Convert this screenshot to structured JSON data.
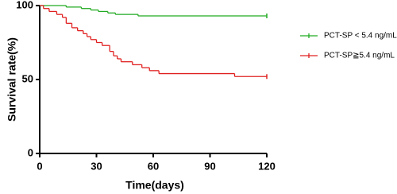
{
  "chart_data": {
    "type": "step",
    "xlabel": "Time(days)",
    "ylabel": "Survival rate(%)",
    "xlim": [
      0,
      120
    ],
    "xticks": [
      0,
      30,
      60,
      90,
      120
    ],
    "ylim": [
      0,
      100
    ],
    "yticks": [
      0,
      50,
      100
    ],
    "series": [
      {
        "name": "PCT-SP < 5.4 ng/mL",
        "color": "#22aa22",
        "x": [
          0,
          14,
          22,
          27,
          31,
          36,
          40,
          52,
          120
        ],
        "values": [
          100,
          99,
          98,
          97,
          96,
          95,
          94,
          93,
          93
        ]
      },
      {
        "name": "PCT-SP≧5.4 ng/mL",
        "color": "#e02020",
        "x": [
          0,
          2,
          5,
          9,
          12,
          14,
          17,
          20,
          23,
          25,
          27,
          30,
          33,
          37,
          39,
          41,
          43,
          49,
          54,
          58,
          63,
          103,
          120
        ],
        "values": [
          100,
          98,
          96,
          94,
          92,
          88,
          85,
          83,
          81,
          79,
          77,
          75,
          73,
          69,
          66,
          64,
          62,
          60,
          58,
          56,
          54,
          52,
          52
        ]
      }
    ]
  }
}
